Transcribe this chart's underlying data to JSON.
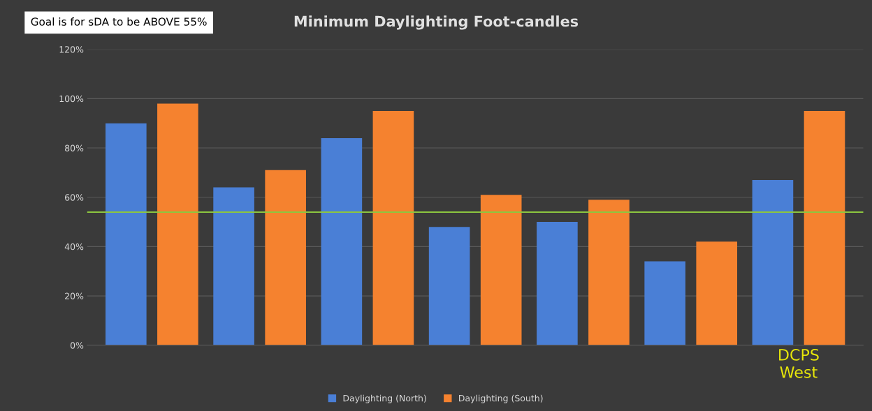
{
  "chart_data": {
    "type": "bar",
    "title": "Minimum Daylighting Foot-candles",
    "annotations": [
      "Goal is for sDA to be ABOVE 55%"
    ],
    "categories": [
      null,
      null,
      null,
      null,
      null,
      null,
      "DCPS\nWest"
    ],
    "series": [
      {
        "name": "Daylighting (North)",
        "color": "#4a7fd6",
        "values": [
          90,
          64,
          84,
          48,
          50,
          34,
          67
        ]
      },
      {
        "name": "Daylighting (South)",
        "color": "#f5822f",
        "values": [
          98,
          71,
          95,
          61,
          59,
          42,
          95
        ]
      }
    ],
    "ylim": [
      0,
      120
    ],
    "yticks": [
      {
        "value": 0,
        "label": "0%"
      },
      {
        "value": 20,
        "label": "20%"
      },
      {
        "value": 40,
        "label": "40%"
      },
      {
        "value": 60,
        "label": "60%"
      },
      {
        "value": 80,
        "label": "80%"
      },
      {
        "value": 100,
        "label": "100%"
      },
      {
        "value": 120,
        "label": "120%"
      }
    ],
    "ref_lines": [
      {
        "axis": "y",
        "value": 54,
        "color": "#8cc63f"
      }
    ],
    "grid": "y",
    "legend": "bottom"
  }
}
